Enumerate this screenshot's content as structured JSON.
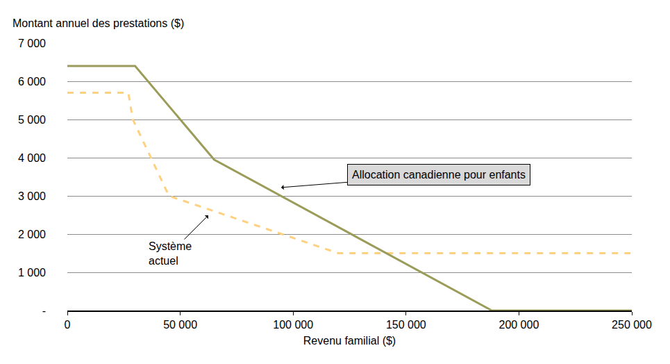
{
  "chart_data": {
    "type": "line",
    "y_label": "Montant annuel des prestations ($)",
    "x_label": "Revenu familial ($)",
    "series": [
      {
        "name": "Allocation canadienne pour enfants",
        "color": "#9b9c5a",
        "line_style": "solid",
        "x": [
          0,
          30000,
          65000,
          188000,
          250000
        ],
        "values": [
          6400,
          6400,
          3950,
          0,
          0
        ]
      },
      {
        "name": "Système actuel",
        "color": "#fdd17f",
        "line_style": "dashed",
        "x": [
          0,
          27000,
          29000,
          45000,
          65000,
          120000,
          250000
        ],
        "values": [
          5700,
          5700,
          5000,
          3000,
          2600,
          1500,
          1500
        ]
      }
    ],
    "xlim": [
      0,
      250000
    ],
    "xticks": [
      0,
      {
        "value": 50000,
        "label": "50 000"
      },
      {
        "value": 100000,
        "label": "100 000"
      },
      {
        "value": 150000,
        "label": "150 000"
      },
      {
        "value": 200000,
        "label": "200 000"
      },
      {
        "value": 250000,
        "label": "250 000"
      }
    ],
    "ylim": [
      0,
      7000
    ],
    "yticks": [
      {
        "value": 0,
        "label": "-"
      },
      {
        "value": 1000,
        "label": "1 000"
      },
      {
        "value": 2000,
        "label": "2 000"
      },
      {
        "value": 3000,
        "label": "3 000"
      },
      {
        "value": 4000,
        "label": "4 000"
      },
      {
        "value": 5000,
        "label": "5 000"
      },
      {
        "value": 6000,
        "label": "6 000"
      },
      {
        "value": 7000,
        "label": "7 000"
      }
    ],
    "grid": true,
    "annotations": [
      {
        "text": "Allocation canadienne pour enfants",
        "x": 94700,
        "y": 3220
      },
      {
        "text": "Système\nactuel",
        "x": 62400,
        "y": 2490
      }
    ]
  }
}
